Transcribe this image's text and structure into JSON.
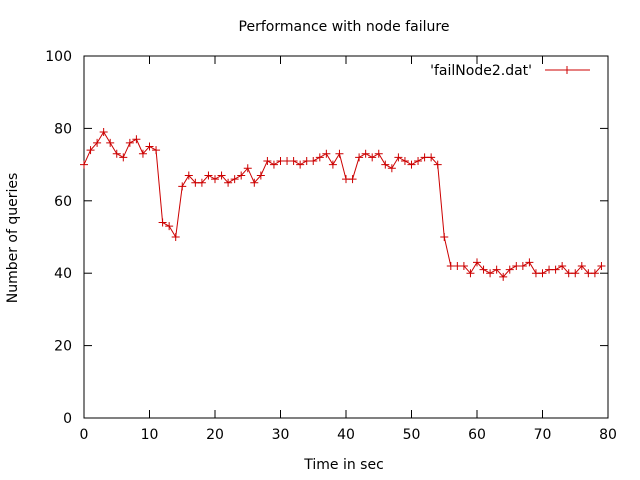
{
  "chart_data": {
    "type": "line",
    "title": "Performance with node failure",
    "xlabel": "Time in sec",
    "ylabel": "Number of queries",
    "xlim": [
      0,
      80
    ],
    "ylim": [
      0,
      100
    ],
    "xticks": [
      0,
      10,
      20,
      30,
      40,
      50,
      60,
      70,
      80
    ],
    "yticks": [
      0,
      20,
      40,
      60,
      80,
      100
    ],
    "x_tick_labels": [
      "0",
      "10",
      "20",
      "30",
      "40",
      "50",
      "60",
      "70",
      "80"
    ],
    "y_tick_labels": [
      "0",
      "20",
      "40",
      "60",
      "80",
      "100"
    ],
    "grid": false,
    "legend_position": "top-right",
    "series": [
      {
        "name": "'failNode2.dat'",
        "color": "#cc0000",
        "marker": "plus",
        "x": [
          0,
          1,
          2,
          3,
          4,
          5,
          6,
          7,
          8,
          9,
          10,
          11,
          12,
          13,
          14,
          15,
          16,
          17,
          18,
          19,
          20,
          21,
          22,
          23,
          24,
          25,
          26,
          27,
          28,
          29,
          30,
          31,
          32,
          33,
          34,
          35,
          36,
          37,
          38,
          39,
          40,
          41,
          42,
          43,
          44,
          45,
          46,
          47,
          48,
          49,
          50,
          51,
          52,
          53,
          54,
          55,
          56,
          57,
          58,
          59,
          60,
          61,
          62,
          63,
          64,
          65,
          66,
          67,
          68,
          69,
          70,
          71,
          72,
          73,
          74,
          75,
          76,
          77,
          78,
          79
        ],
        "y": [
          70,
          74,
          76,
          79,
          76,
          73,
          72,
          76,
          77,
          73,
          75,
          74,
          54,
          53,
          50,
          64,
          67,
          65,
          65,
          67,
          66,
          67,
          65,
          66,
          67,
          69,
          65,
          67,
          71,
          70,
          71,
          71,
          71,
          70,
          71,
          71,
          72,
          73,
          70,
          73,
          66,
          66,
          72,
          73,
          72,
          73,
          70,
          69,
          72,
          71,
          70,
          71,
          72,
          72,
          70,
          50,
          42,
          42,
          42,
          40,
          43,
          41,
          40,
          41,
          39,
          41,
          42,
          42,
          43,
          40,
          40,
          41,
          41,
          42,
          40,
          40,
          42,
          40,
          40,
          42
        ]
      }
    ]
  }
}
